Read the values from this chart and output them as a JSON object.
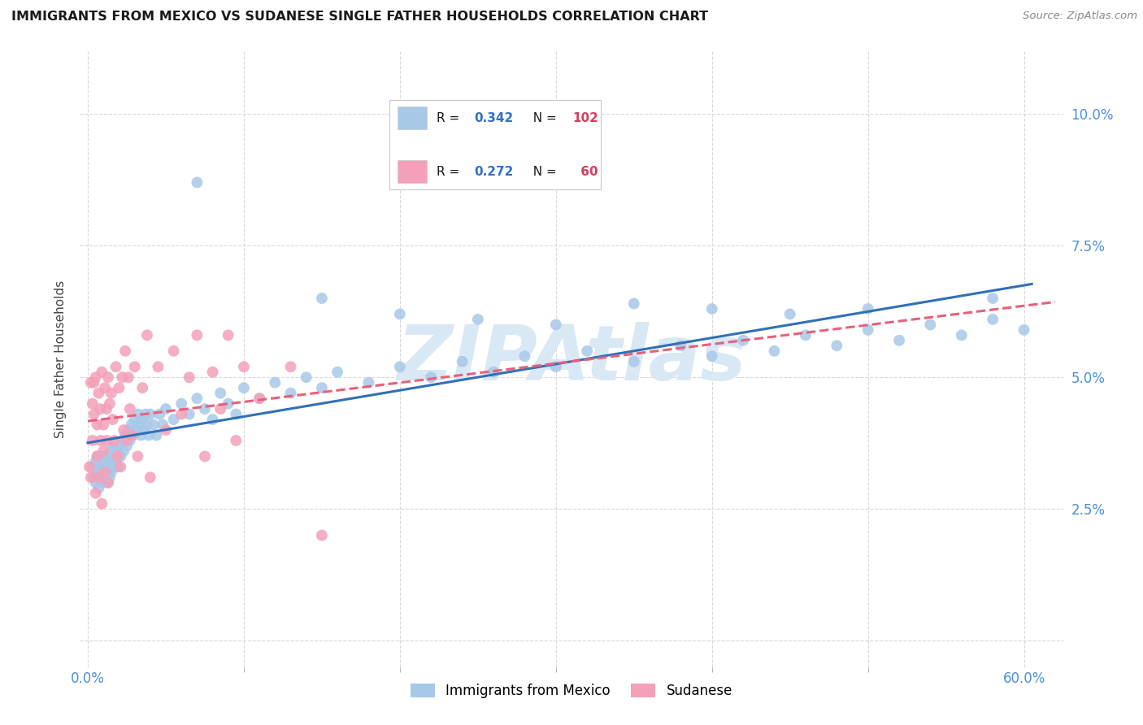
{
  "title": "IMMIGRANTS FROM MEXICO VS SUDANESE SINGLE FATHER HOUSEHOLDS CORRELATION CHART",
  "source": "Source: ZipAtlas.com",
  "xlabel_mexico": "Immigrants from Mexico",
  "xlabel_sudanese": "Sudanese",
  "ylabel": "Single Father Households",
  "xlim": [
    -0.005,
    0.625
  ],
  "ylim": [
    -0.005,
    0.112
  ],
  "yticks": [
    0.0,
    0.025,
    0.05,
    0.075,
    0.1
  ],
  "ytick_labels_right": [
    "",
    "2.5%",
    "5.0%",
    "7.5%",
    "10.0%"
  ],
  "xtick_show": [
    0.0,
    0.6
  ],
  "xtick_labels": [
    "0.0%",
    "60.0%"
  ],
  "xtick_minor": [
    0.1,
    0.2,
    0.3,
    0.4,
    0.5
  ],
  "mexico_R": 0.342,
  "mexico_N": 102,
  "sudanese_R": 0.272,
  "sudanese_N": 60,
  "blue_scatter_color": "#a8c8e8",
  "pink_scatter_color": "#f4a0b8",
  "blue_line_color": "#3070b8",
  "pink_line_color": "#e8607a",
  "tick_label_color": "#4a90d9",
  "watermark": "ZIPAtlas",
  "watermark_color": "#d8e8f4",
  "background_color": "#ffffff",
  "grid_color": "#d8d8d8",
  "title_color": "#1a1a1a",
  "source_color": "#888888",
  "ylabel_color": "#444444",
  "legend_border_color": "#c8c8c8",
  "legend_R_color": "#1a1a1a",
  "legend_val_color": "#3070c8",
  "legend_N_val_color": "#d04060",
  "mexico_x": [
    0.003,
    0.004,
    0.005,
    0.005,
    0.006,
    0.006,
    0.007,
    0.007,
    0.008,
    0.008,
    0.009,
    0.009,
    0.01,
    0.01,
    0.011,
    0.011,
    0.012,
    0.012,
    0.013,
    0.013,
    0.014,
    0.014,
    0.015,
    0.015,
    0.016,
    0.016,
    0.017,
    0.018,
    0.019,
    0.02,
    0.021,
    0.022,
    0.023,
    0.024,
    0.025,
    0.026,
    0.027,
    0.028,
    0.029,
    0.03,
    0.031,
    0.032,
    0.033,
    0.034,
    0.035,
    0.036,
    0.037,
    0.038,
    0.039,
    0.04,
    0.042,
    0.044,
    0.046,
    0.048,
    0.05,
    0.055,
    0.06,
    0.065,
    0.07,
    0.075,
    0.08,
    0.085,
    0.09,
    0.095,
    0.1,
    0.11,
    0.12,
    0.13,
    0.14,
    0.15,
    0.16,
    0.18,
    0.2,
    0.22,
    0.24,
    0.26,
    0.28,
    0.3,
    0.32,
    0.35,
    0.38,
    0.4,
    0.42,
    0.44,
    0.46,
    0.48,
    0.5,
    0.52,
    0.54,
    0.56,
    0.58,
    0.6,
    0.2,
    0.3,
    0.4,
    0.25,
    0.35,
    0.45,
    0.15,
    0.5,
    0.07,
    0.58
  ],
  "mexico_y": [
    0.033,
    0.031,
    0.03,
    0.034,
    0.032,
    0.035,
    0.029,
    0.033,
    0.031,
    0.034,
    0.032,
    0.035,
    0.03,
    0.033,
    0.031,
    0.034,
    0.032,
    0.035,
    0.03,
    0.033,
    0.031,
    0.034,
    0.032,
    0.036,
    0.033,
    0.037,
    0.034,
    0.036,
    0.033,
    0.037,
    0.035,
    0.038,
    0.036,
    0.039,
    0.037,
    0.04,
    0.038,
    0.041,
    0.039,
    0.042,
    0.04,
    0.043,
    0.041,
    0.039,
    0.042,
    0.04,
    0.043,
    0.041,
    0.039,
    0.043,
    0.041,
    0.039,
    0.043,
    0.041,
    0.044,
    0.042,
    0.045,
    0.043,
    0.046,
    0.044,
    0.042,
    0.047,
    0.045,
    0.043,
    0.048,
    0.046,
    0.049,
    0.047,
    0.05,
    0.048,
    0.051,
    0.049,
    0.052,
    0.05,
    0.053,
    0.051,
    0.054,
    0.052,
    0.055,
    0.053,
    0.056,
    0.054,
    0.057,
    0.055,
    0.058,
    0.056,
    0.059,
    0.057,
    0.06,
    0.058,
    0.061,
    0.059,
    0.062,
    0.06,
    0.063,
    0.061,
    0.064,
    0.062,
    0.065,
    0.063,
    0.087,
    0.065
  ],
  "sudanese_x": [
    0.001,
    0.002,
    0.002,
    0.003,
    0.003,
    0.004,
    0.004,
    0.005,
    0.005,
    0.006,
    0.006,
    0.007,
    0.007,
    0.008,
    0.008,
    0.009,
    0.009,
    0.01,
    0.01,
    0.011,
    0.011,
    0.012,
    0.012,
    0.013,
    0.013,
    0.014,
    0.015,
    0.016,
    0.017,
    0.018,
    0.019,
    0.02,
    0.021,
    0.022,
    0.023,
    0.024,
    0.025,
    0.026,
    0.027,
    0.028,
    0.03,
    0.032,
    0.035,
    0.038,
    0.04,
    0.045,
    0.05,
    0.055,
    0.06,
    0.065,
    0.07,
    0.075,
    0.08,
    0.085,
    0.09,
    0.095,
    0.1,
    0.11,
    0.13,
    0.15
  ],
  "sudanese_y": [
    0.033,
    0.049,
    0.031,
    0.045,
    0.038,
    0.049,
    0.043,
    0.028,
    0.05,
    0.041,
    0.035,
    0.047,
    0.031,
    0.044,
    0.038,
    0.051,
    0.026,
    0.041,
    0.036,
    0.048,
    0.032,
    0.044,
    0.038,
    0.05,
    0.03,
    0.045,
    0.047,
    0.042,
    0.038,
    0.052,
    0.035,
    0.048,
    0.033,
    0.05,
    0.04,
    0.055,
    0.038,
    0.05,
    0.044,
    0.039,
    0.052,
    0.035,
    0.048,
    0.058,
    0.031,
    0.052,
    0.04,
    0.055,
    0.043,
    0.05,
    0.058,
    0.035,
    0.051,
    0.044,
    0.058,
    0.038,
    0.052,
    0.046,
    0.052,
    0.02
  ]
}
